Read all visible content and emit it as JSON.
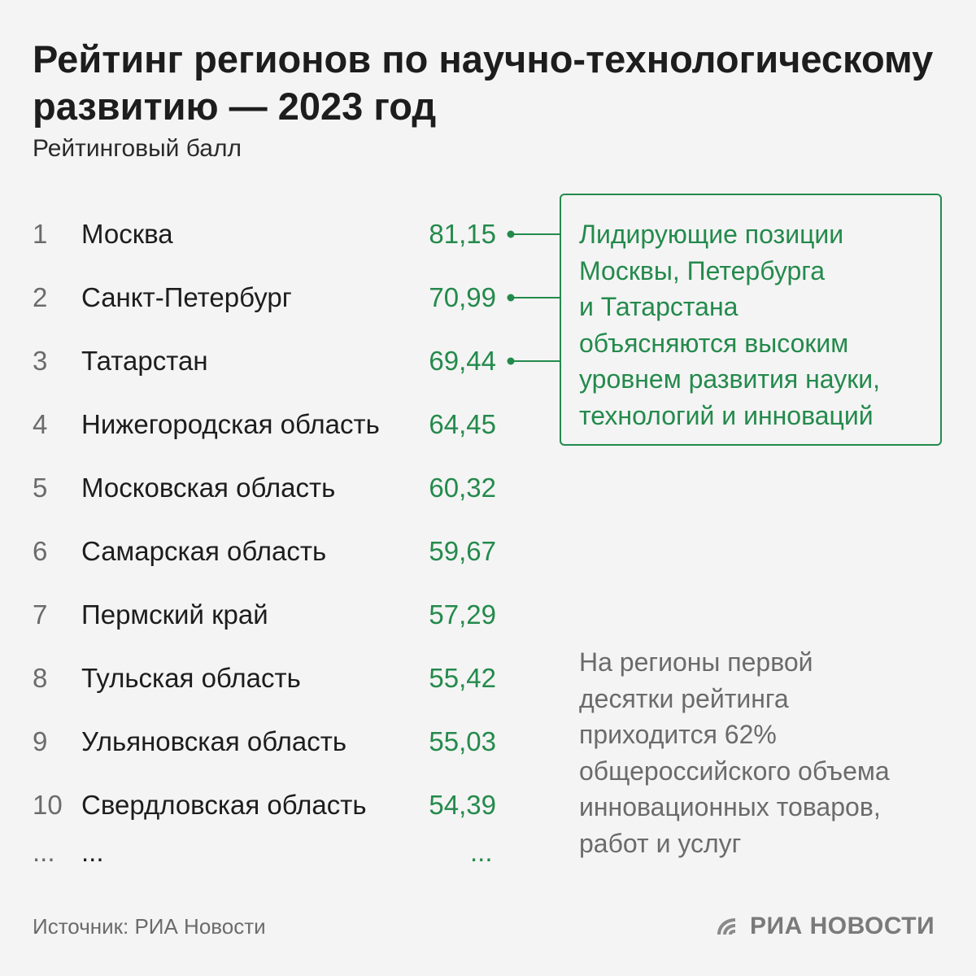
{
  "header": {
    "title": "Рейтинг регионов по научно-технологическому развитию — 2023 год",
    "subtitle": "Рейтинговый балл"
  },
  "chart_data": {
    "type": "table",
    "title": "Рейтинг регионов по научно-технологическому развитию — 2023 год",
    "value_label": "Рейтинговый балл",
    "rows": [
      {
        "rank": "1",
        "region": "Москва",
        "value": "81,15"
      },
      {
        "rank": "2",
        "region": "Санкт-Петербург",
        "value": "70,99"
      },
      {
        "rank": "3",
        "region": "Татарстан",
        "value": "69,44"
      },
      {
        "rank": "4",
        "region": "Нижегородская область",
        "value": "64,45"
      },
      {
        "rank": "5",
        "region": "Московская область",
        "value": "60,32"
      },
      {
        "rank": "6",
        "region": "Самарская область",
        "value": "59,67"
      },
      {
        "rank": "7",
        "region": "Пермский край",
        "value": "57,29"
      },
      {
        "rank": "8",
        "region": "Тульская область",
        "value": "55,42"
      },
      {
        "rank": "9",
        "region": "Ульяновская область",
        "value": "55,03"
      },
      {
        "rank": "10",
        "region": "Свердловская область",
        "value": "54,39"
      }
    ],
    "ellipsis": {
      "rank": "...",
      "region": "...",
      "value": "..."
    }
  },
  "callout": {
    "lines": [
      "Лидирующие позиции",
      "Москвы, Петербурга",
      "и Татарстана",
      "объясняются высоким",
      "уровнем развития науки,",
      "технологий и инноваций"
    ],
    "connects_ranks": [
      1,
      2,
      3
    ]
  },
  "note": {
    "lines": [
      "На регионы первой",
      "десятки рейтинга",
      "приходится 62%",
      "общероссийского объема",
      "инновационных товаров,",
      "работ и услуг"
    ]
  },
  "footer": {
    "source": "Источник: РИА Новости",
    "logo_text": "РИА НОВОСТИ",
    "logo_icon": "ria-logo-icon"
  },
  "colors": {
    "accent": "#248a4c",
    "text": "#1d1d1d",
    "muted": "#6b6b6b",
    "background": "#f4f4f4"
  }
}
